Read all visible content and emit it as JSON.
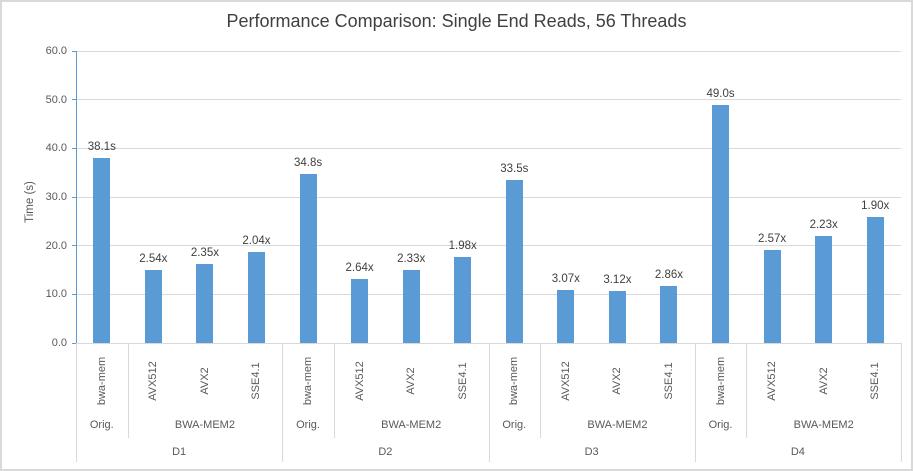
{
  "colors": {
    "bar": "#5B9BD5",
    "axis_line": "#5B9BD5",
    "gridline": "#D9D9D9",
    "separator": "#D9D9D9",
    "border": "#D9D9D9",
    "label_dark": "#404040",
    "label_gray": "#595959"
  },
  "chart_data": {
    "type": "bar",
    "title": "Performance Comparison: Single End Reads, 56 Threads",
    "xlabel": "",
    "ylabel": "Time (s)",
    "ylim": [
      0,
      60
    ],
    "yticks": [
      "0.0",
      "10.0",
      "20.0",
      "30.0",
      "40.0",
      "50.0",
      "60.0"
    ],
    "grid": "horizontal",
    "legend": "none",
    "bar_color": "#5B9BD5",
    "groups": [
      {
        "label": "D1",
        "sections": [
          {
            "label": "Orig.",
            "bars": [
              {
                "category": "bwa-mem",
                "time_s": 38.1,
                "data_label": "38.1s"
              }
            ]
          },
          {
            "label": "BWA-MEM2",
            "bars": [
              {
                "category": "AVX512",
                "time_s": 15.0,
                "data_label": "2.54x"
              },
              {
                "category": "AVX2",
                "time_s": 16.2,
                "data_label": "2.35x"
              },
              {
                "category": "SSE4.1",
                "time_s": 18.7,
                "data_label": "2.04x"
              }
            ]
          }
        ]
      },
      {
        "label": "D2",
        "sections": [
          {
            "label": "Orig.",
            "bars": [
              {
                "category": "bwa-mem",
                "time_s": 34.8,
                "data_label": "34.8s"
              }
            ]
          },
          {
            "label": "BWA-MEM2",
            "bars": [
              {
                "category": "AVX512",
                "time_s": 13.2,
                "data_label": "2.64x"
              },
              {
                "category": "AVX2",
                "time_s": 14.9,
                "data_label": "2.33x"
              },
              {
                "category": "SSE4.1",
                "time_s": 17.6,
                "data_label": "1.98x"
              }
            ]
          }
        ]
      },
      {
        "label": "D3",
        "sections": [
          {
            "label": "Orig.",
            "bars": [
              {
                "category": "bwa-mem",
                "time_s": 33.5,
                "data_label": "33.5s"
              }
            ]
          },
          {
            "label": "BWA-MEM2",
            "bars": [
              {
                "category": "AVX512",
                "time_s": 10.9,
                "data_label": "3.07x"
              },
              {
                "category": "AVX2",
                "time_s": 10.7,
                "data_label": "3.12x"
              },
              {
                "category": "SSE4.1",
                "time_s": 11.7,
                "data_label": "2.86x"
              }
            ]
          }
        ]
      },
      {
        "label": "D4",
        "sections": [
          {
            "label": "Orig.",
            "bars": [
              {
                "category": "bwa-mem",
                "time_s": 49.0,
                "data_label": "49.0s"
              }
            ]
          },
          {
            "label": "BWA-MEM2",
            "bars": [
              {
                "category": "AVX512",
                "time_s": 19.1,
                "data_label": "2.57x"
              },
              {
                "category": "AVX2",
                "time_s": 22.0,
                "data_label": "2.23x"
              },
              {
                "category": "SSE4.1",
                "time_s": 25.8,
                "data_label": "1.90x"
              }
            ]
          }
        ]
      }
    ]
  }
}
